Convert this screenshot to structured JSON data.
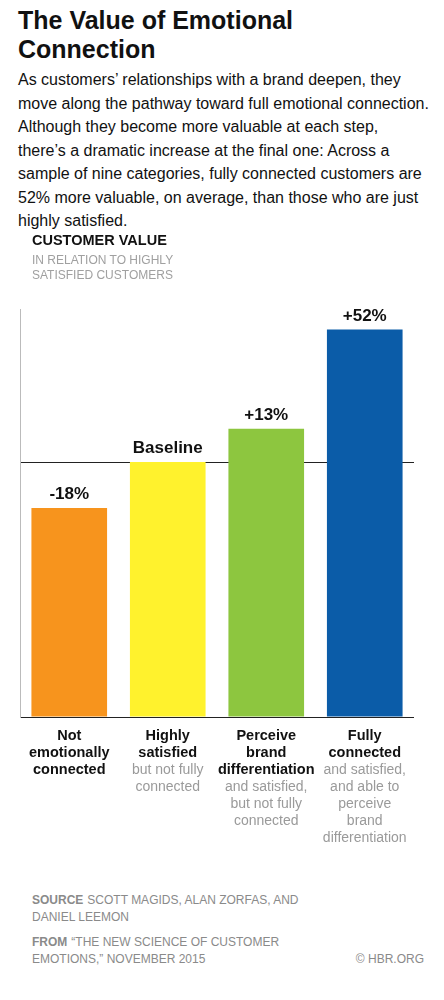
{
  "chart_data": {
    "type": "bar",
    "title": "The Value of Emotional Connection",
    "subtitle": "As customers’ relationships with a brand deepen, they move along the pathway toward full emotional connection. Although they become more valuable at each step, there’s a dramatic increase at the final one: Across a sample of nine categories, fully connected customers are 52% more valuable, on average, than those who are just highly satisfied.",
    "y_title": "CUSTOMER VALUE",
    "y_subtitle": "IN RELATION TO HIGHLY SATISFIED CUSTOMERS",
    "categories": [
      "Not emotionally connected",
      "Highly satisfied",
      "Perceive brand differentiation",
      "Fully connected"
    ],
    "category_notes": [
      null,
      "but not fully connected",
      "and satisfied, but not fully connected",
      "and satisfied, and able to perceive brand differentiation"
    ],
    "values": [
      -18,
      0,
      13,
      52
    ],
    "value_labels": [
      "-18%",
      "Baseline",
      "+13%",
      "+52%"
    ],
    "colors": [
      "#f7941d",
      "#fff22d",
      "#8dc63f",
      "#0b5ca8"
    ],
    "ylim": [
      -100,
      60
    ],
    "yticks": [
      -100,
      0
    ],
    "grid": true,
    "data_labels": true,
    "tick_labels": false,
    "source_label": "SOURCE",
    "source": "SCOTT MAGIDS, ALAN ZORFAS, AND DANIEL LEEMON",
    "from_label": "FROM",
    "from": "“THE NEW SCIENCE OF CUSTOMER EMOTIONS,” NOVEMBER 2015",
    "credit": "© HBR.ORG"
  }
}
